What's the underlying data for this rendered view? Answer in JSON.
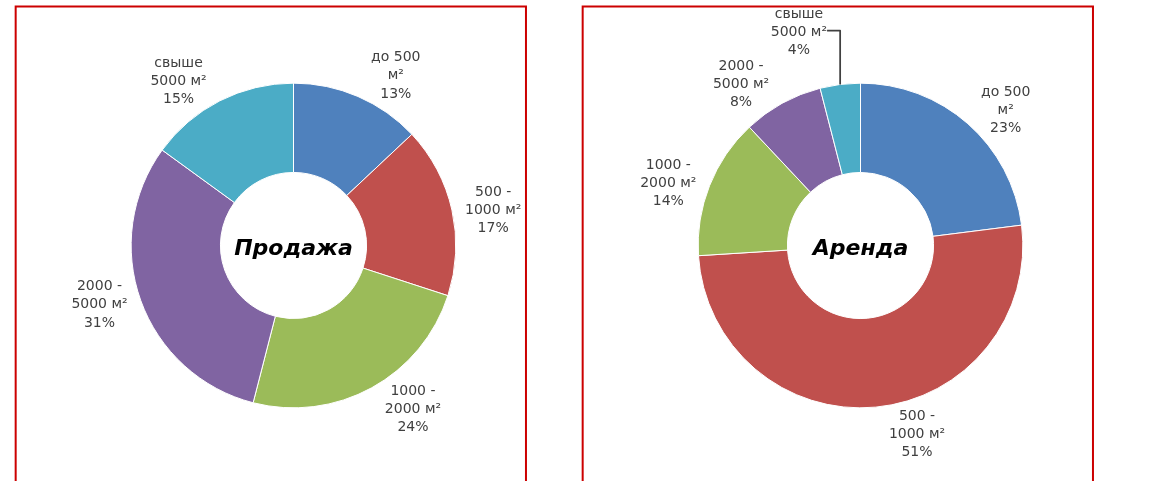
{
  "chart_data": [
    {
      "type": "donut",
      "title": "Продажа",
      "categories": [
        "до 500 м²",
        "500 - 1000 м²",
        "1000 - 2000 м²",
        "2000 - 5000 м²",
        "свыше 5000 м²"
      ],
      "values": [
        13,
        17,
        24,
        31,
        15
      ],
      "value_labels": [
        "13%",
        "17%",
        "24%",
        "31%",
        "15%"
      ],
      "colors": [
        "#4f81bd",
        "#c0504d",
        "#9bbb59",
        "#8064a2",
        "#4bacc6"
      ],
      "legend": false
    },
    {
      "type": "donut",
      "title": "Аренда",
      "categories": [
        "до 500 м²",
        "500 - 1000 м²",
        "1000 - 2000 м²",
        "2000 - 5000 м²",
        "свыше 5000 м²"
      ],
      "values": [
        23,
        51,
        14,
        8,
        4
      ],
      "value_labels": [
        "23%",
        "51%",
        "14%",
        "8%",
        "4%"
      ],
      "colors": [
        "#4f81bd",
        "#c0504d",
        "#9bbb59",
        "#8064a2",
        "#4bacc6"
      ],
      "legend": false
    }
  ]
}
